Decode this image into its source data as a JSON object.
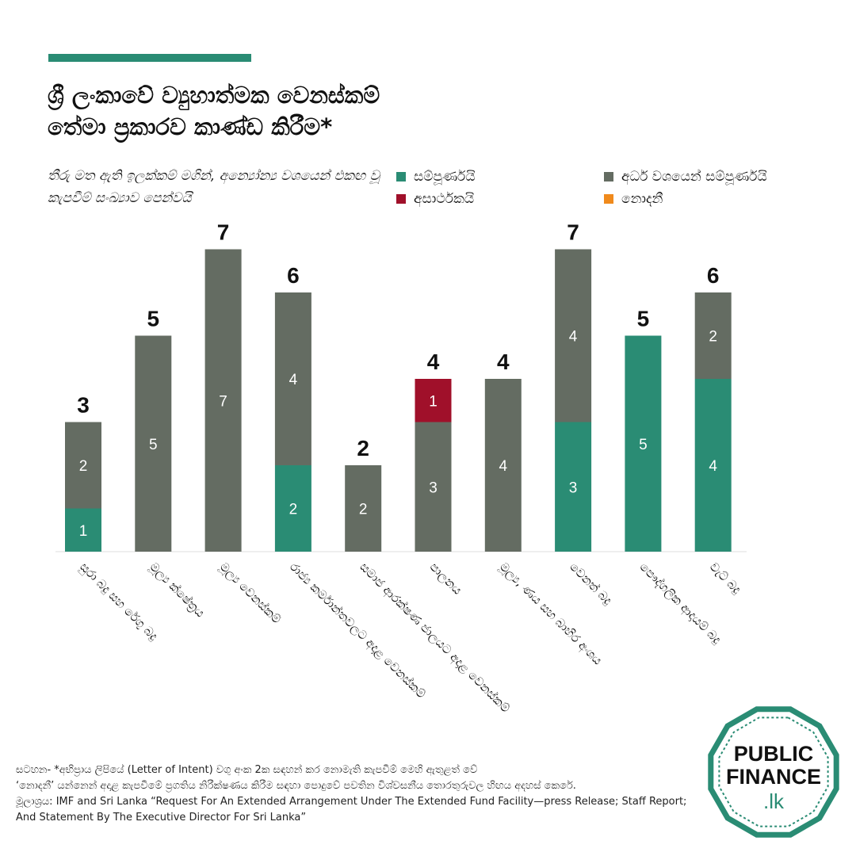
{
  "title_line1": "ශ්‍රී ලංකාවේ ව්‍යුහාත්මක වෙනස්කම්",
  "title_line2": "තේමා ප්‍රකාරව කාණ්ඩ කිරීම*",
  "subtitle": "තීරු මත ඇති ඉලක්කම් මගින්, අන්‍යෝන්‍ය වශයෙන් එකඟ වූ කැපවීම් සංඛ්‍යාව පෙන්වයි",
  "legend": [
    {
      "label": "සම්පූර්ණයි",
      "color": "#2a8c74"
    },
    {
      "label": "අර්ධ වශයෙන් සම්පූර්ණයි",
      "color": "#646c62"
    },
    {
      "label": "අසාර්ථකයි",
      "color": "#a0102a"
    },
    {
      "label": "නොදනී",
      "color": "#f08a1c"
    }
  ],
  "chart_data": {
    "type": "bar",
    "stacked": true,
    "categories": [
      "සුරා බදු සහ රේගු බදු",
      "මූල්‍ය ක්ෂේත්‍රය",
      "මූල්‍ය වෙනස්කම්",
      "රාජ්‍ය කර්මාන්තවලට අදාළ වෙනස්කම්",
      "සමාජ ආරක්ෂණ ජාලයට අදාළ වෙනස්කම්",
      "පාලනය",
      "මූල්‍ය, ණය සහ බාහිර අංශය",
      "වෙනත් බදු",
      "පෞද්ගලික ආදායම් බදු",
      "වැට් බදු"
    ],
    "series": [
      {
        "name": "සම්පූර්ණයි",
        "color": "#2a8c74",
        "values": [
          1,
          0,
          0,
          2,
          0,
          0,
          0,
          3,
          5,
          4
        ]
      },
      {
        "name": "අර්ධ වශයෙන් සම්පූර්ණයි",
        "color": "#646c62",
        "values": [
          2,
          5,
          7,
          4,
          2,
          3,
          4,
          4,
          0,
          2
        ]
      },
      {
        "name": "අසාර්ථකයි",
        "color": "#a0102a",
        "values": [
          0,
          0,
          0,
          0,
          0,
          1,
          0,
          0,
          0,
          0
        ]
      },
      {
        "name": "නොදනී",
        "color": "#f08a1c",
        "values": [
          0,
          0,
          0,
          0,
          0,
          0,
          0,
          0,
          0,
          0
        ]
      }
    ],
    "totals": [
      3,
      5,
      7,
      6,
      2,
      4,
      4,
      7,
      5,
      6
    ],
    "ylim": [
      0,
      7
    ],
    "grid": false,
    "legend_position": "top-right"
  },
  "footnote_line1": "සටහන- *අභිප්‍රාය ලිපියේ (Letter of Intent) වගු අංක 2ක සඳහන් කර නොමැති කැපවීම් මෙහි ඇතුළත් වේ",
  "footnote_line2": "‘නොදනී’ යන්නෙන් අදාළ කැපවීමේ ප්‍රගතිය නිරීක්ෂණය කිරීම සඳහා පොදුවේ පවතින විශ්වසනීය තොරතුරුවල හිඟය අදහස් කෙරේ.",
  "source": "මූලාශ්‍රය: IMF and Sri Lanka “Request For An Extended Arrangement Under The Extended Fund Facility—press Release; Staff Report; And Statement By The Executive Director For Sri Lanka”",
  "logo": {
    "line1": "PUBLIC",
    "line2": "FINANCE",
    "line3": ".lk",
    "color": "#2a8c74"
  }
}
